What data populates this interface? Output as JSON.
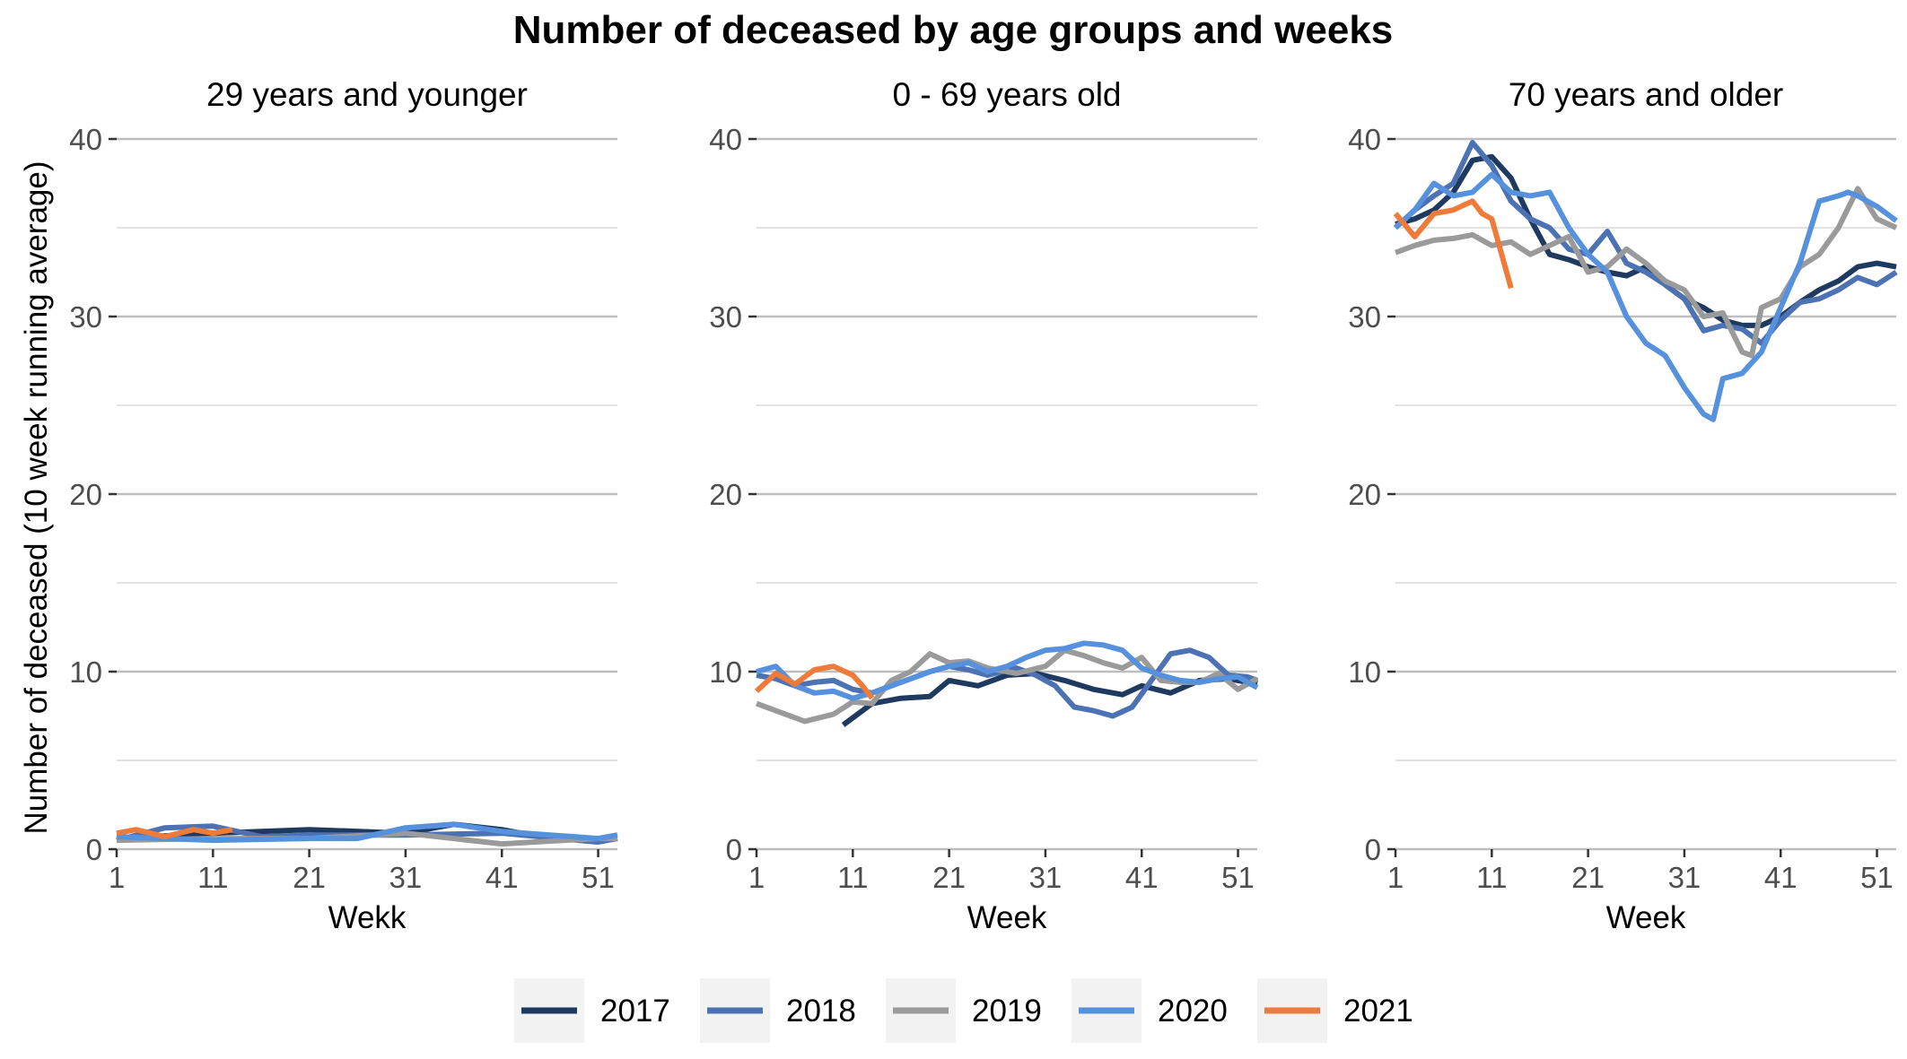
{
  "chart_data": {
    "type": "line",
    "title": "Number of deceased by age groups and weeks",
    "ylabel": "Number of deceased (10 week running average)",
    "ylim": [
      0,
      40
    ],
    "yticks": [
      0,
      10,
      20,
      30,
      40
    ],
    "xlim": [
      1,
      53
    ],
    "xticks": [
      1,
      11,
      21,
      31,
      41,
      51
    ],
    "grid": true,
    "legend_position": "bottom",
    "colors": {
      "2017": "#1f3a60",
      "2018": "#4d72b3",
      "2019": "#9a9a9a",
      "2020": "#5591dc",
      "2021": "#ef7b3a"
    },
    "panels": [
      {
        "title": "29 years and younger",
        "xlabel": "Wekk",
        "series": [
          {
            "name": "2017",
            "x": [
              1,
              11,
              21,
              31,
              36,
              41,
              46,
              51,
              53
            ],
            "y": [
              0.6,
              0.9,
              1.1,
              0.9,
              1.4,
              1.1,
              0.6,
              0.5,
              0.6
            ]
          },
          {
            "name": "2018",
            "x": [
              1,
              6,
              11,
              16,
              21,
              31,
              41,
              51,
              53
            ],
            "y": [
              0.5,
              1.2,
              1.3,
              0.7,
              0.8,
              0.8,
              0.9,
              0.4,
              0.6
            ]
          },
          {
            "name": "2019",
            "x": [
              1,
              11,
              21,
              31,
              41,
              51,
              53
            ],
            "y": [
              0.5,
              0.6,
              0.6,
              0.9,
              0.3,
              0.6,
              0.6
            ]
          },
          {
            "name": "2020",
            "x": [
              1,
              11,
              21,
              26,
              31,
              36,
              41,
              46,
              51,
              53
            ],
            "y": [
              0.7,
              0.5,
              0.6,
              0.6,
              1.2,
              1.4,
              1.0,
              0.8,
              0.6,
              0.8
            ]
          },
          {
            "name": "2021",
            "x": [
              1,
              3,
              6,
              9,
              11,
              13
            ],
            "y": [
              0.9,
              1.1,
              0.7,
              1.1,
              0.9,
              1.1
            ]
          }
        ]
      },
      {
        "title": "0 - 69 years old",
        "xlabel": "Week",
        "series": [
          {
            "name": "2017",
            "x": [
              10,
              13,
              16,
              19,
              21,
              24,
              27,
              30,
              33,
              36,
              39,
              41,
              44,
              47,
              50,
              53
            ],
            "y": [
              7.0,
              8.2,
              8.5,
              8.6,
              9.5,
              9.2,
              9.8,
              9.9,
              9.5,
              9.0,
              8.7,
              9.2,
              8.8,
              9.5,
              9.6,
              9.3
            ]
          },
          {
            "name": "2018",
            "x": [
              1,
              3,
              5,
              7,
              9,
              11,
              13,
              15,
              17,
              19,
              21,
              23,
              25,
              28,
              30,
              32,
              34,
              36,
              38,
              40,
              42,
              44,
              46,
              48,
              50,
              52,
              53
            ],
            "y": [
              9.8,
              9.6,
              9.2,
              9.4,
              9.5,
              9.0,
              8.8,
              9.2,
              9.6,
              10.0,
              10.3,
              10.1,
              9.8,
              10.2,
              9.8,
              9.2,
              8.0,
              7.8,
              7.5,
              8.0,
              9.5,
              11.0,
              11.2,
              10.8,
              9.8,
              9.7,
              9.5
            ]
          },
          {
            "name": "2019",
            "x": [
              1,
              3,
              6,
              9,
              11,
              13,
              15,
              17,
              19,
              21,
              23,
              25,
              28,
              31,
              33,
              35,
              37,
              39,
              41,
              43,
              45,
              47,
              49,
              51,
              53
            ],
            "y": [
              8.2,
              7.8,
              7.2,
              7.6,
              8.3,
              8.2,
              9.5,
              10.0,
              11.0,
              10.5,
              10.6,
              10.2,
              9.9,
              10.3,
              11.2,
              10.9,
              10.5,
              10.2,
              10.8,
              9.5,
              9.4,
              9.4,
              9.9,
              9.0,
              9.6
            ]
          },
          {
            "name": "2020",
            "x": [
              1,
              3,
              5,
              7,
              9,
              11,
              13,
              15,
              17,
              19,
              21,
              23,
              25,
              27,
              29,
              31,
              33,
              35,
              37,
              39,
              41,
              43,
              45,
              47,
              49,
              51,
              53
            ],
            "y": [
              10.0,
              10.3,
              9.2,
              8.8,
              8.9,
              8.5,
              8.8,
              9.2,
              9.6,
              10.0,
              10.3,
              10.5,
              10.0,
              10.3,
              10.8,
              11.2,
              11.3,
              11.6,
              11.5,
              11.2,
              10.2,
              9.8,
              9.5,
              9.4,
              9.6,
              9.7,
              9.1
            ]
          },
          {
            "name": "2021",
            "x": [
              1,
              3,
              5,
              7,
              9,
              11,
              12,
              13
            ],
            "y": [
              8.9,
              9.9,
              9.3,
              10.1,
              10.3,
              9.8,
              9.2,
              8.5
            ]
          }
        ]
      },
      {
        "title": "70 years and older",
        "xlabel": "Week",
        "series": [
          {
            "name": "2017",
            "x": [
              1,
              3,
              5,
              7,
              9,
              11,
              13,
              15,
              17,
              19,
              21,
              23,
              25,
              27,
              29,
              31,
              33,
              35,
              37,
              39,
              41,
              43,
              45,
              47,
              49,
              51,
              53
            ],
            "y": [
              35.2,
              35.5,
              36.0,
              37.0,
              38.8,
              39.0,
              37.8,
              35.5,
              33.5,
              33.2,
              32.8,
              32.5,
              32.3,
              32.8,
              31.8,
              31.0,
              30.5,
              29.8,
              29.5,
              29.5,
              30.0,
              30.8,
              31.5,
              32.0,
              32.8,
              33.0,
              32.8
            ]
          },
          {
            "name": "2018",
            "x": [
              1,
              3,
              5,
              7,
              9,
              11,
              13,
              15,
              17,
              19,
              21,
              23,
              25,
              27,
              29,
              31,
              33,
              35,
              37,
              39,
              41,
              43,
              45,
              47,
              49,
              51,
              53
            ],
            "y": [
              35.0,
              36.0,
              36.8,
              37.5,
              39.8,
              38.5,
              36.5,
              35.5,
              35.0,
              33.8,
              33.5,
              34.8,
              33.0,
              32.5,
              31.8,
              31.0,
              29.2,
              29.5,
              29.3,
              28.5,
              29.8,
              30.8,
              31.0,
              31.5,
              32.2,
              31.8,
              32.5
            ]
          },
          {
            "name": "2019",
            "x": [
              1,
              3,
              5,
              7,
              9,
              11,
              13,
              15,
              17,
              19,
              21,
              23,
              25,
              27,
              29,
              31,
              33,
              35,
              37,
              38,
              39,
              41,
              43,
              45,
              47,
              49,
              51,
              53
            ],
            "y": [
              33.6,
              34.0,
              34.3,
              34.4,
              34.6,
              34.0,
              34.2,
              33.5,
              34.0,
              34.5,
              32.5,
              32.8,
              33.8,
              33.0,
              32.0,
              31.5,
              30.0,
              30.2,
              28.0,
              27.8,
              30.5,
              31.0,
              32.8,
              33.5,
              35.0,
              37.2,
              35.5,
              35.0
            ]
          },
          {
            "name": "2020",
            "x": [
              1,
              3,
              5,
              7,
              9,
              11,
              13,
              15,
              17,
              19,
              21,
              23,
              25,
              27,
              29,
              31,
              33,
              34,
              35,
              37,
              39,
              41,
              43,
              45,
              47,
              48,
              49,
              51,
              53
            ],
            "y": [
              35.0,
              36.0,
              37.5,
              36.8,
              37.0,
              38.0,
              37.0,
              36.8,
              37.0,
              35.0,
              33.5,
              32.5,
              30.0,
              28.5,
              27.8,
              26.0,
              24.5,
              24.2,
              26.5,
              26.8,
              28.0,
              30.5,
              33.0,
              36.5,
              36.8,
              37.0,
              36.8,
              36.2,
              35.4
            ]
          },
          {
            "name": "2021",
            "x": [
              1,
              3,
              5,
              7,
              9,
              10,
              11,
              13
            ],
            "y": [
              35.8,
              34.5,
              35.8,
              36.0,
              36.5,
              35.8,
              35.5,
              31.6
            ]
          }
        ]
      }
    ],
    "legend": [
      "2017",
      "2018",
      "2019",
      "2020",
      "2021"
    ]
  }
}
